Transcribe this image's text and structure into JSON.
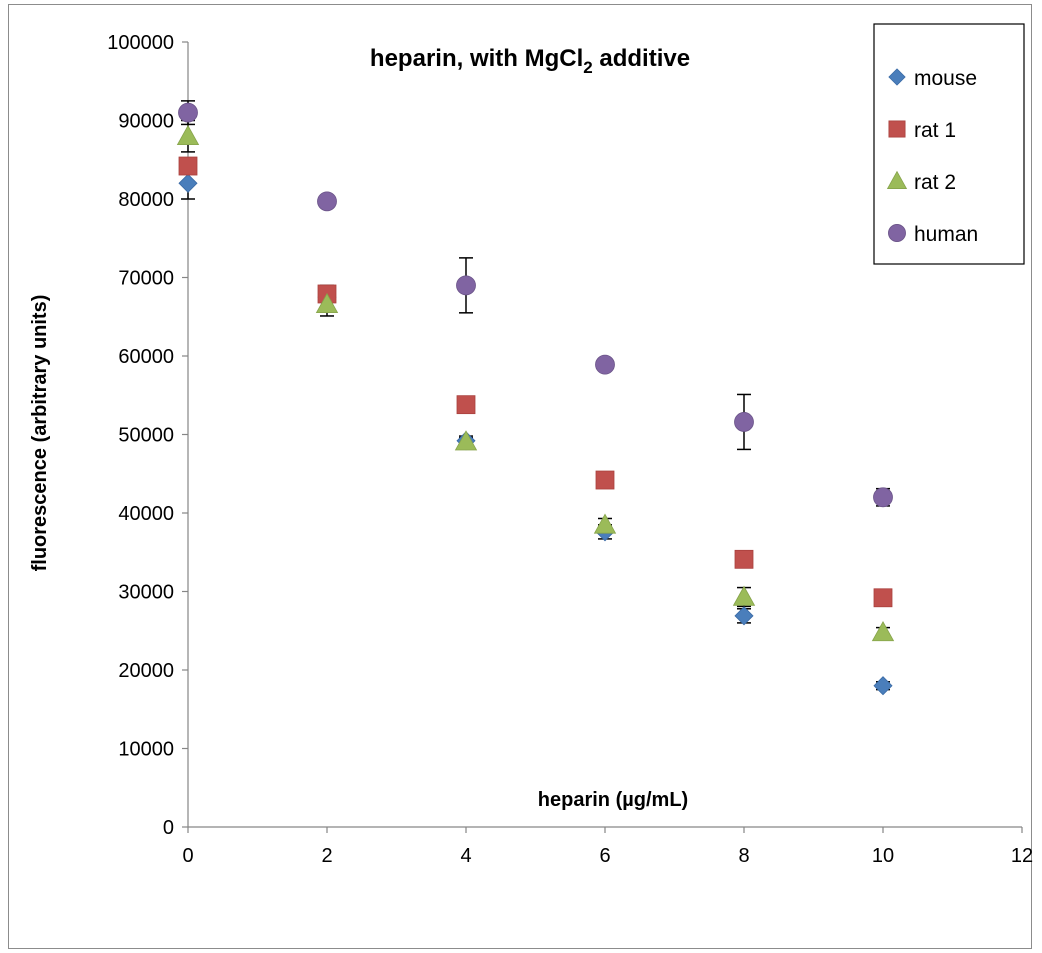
{
  "chart_data": {
    "type": "scatter",
    "title": "heparin, with MgCl",
    "title_subscript": "2",
    "title_suffix": " additive",
    "xlabel": "heparin (µg/mL)",
    "ylabel": "fluorescence (arbitrary units)",
    "xlim": [
      0,
      12
    ],
    "ylim": [
      0,
      100000
    ],
    "xticks": [
      "0",
      "2",
      "4",
      "6",
      "8",
      "10",
      "12"
    ],
    "yticks": [
      "0",
      "10000",
      "20000",
      "30000",
      "40000",
      "50000",
      "60000",
      "70000",
      "80000",
      "90000",
      "100000"
    ],
    "grid": false,
    "legend": "top-right",
    "series": [
      {
        "name": "mouse",
        "marker": "diamond",
        "color": "#4a7ebb",
        "x": [
          0,
          2,
          4,
          6,
          8,
          10
        ],
        "y": [
          82000,
          67500,
          49200,
          37600,
          26900,
          18000
        ],
        "err": [
          2000,
          1500,
          600,
          900,
          900,
          500
        ]
      },
      {
        "name": "rat 1",
        "marker": "square",
        "color": "#c0504d",
        "x": [
          0,
          2,
          4,
          6,
          8,
          10
        ],
        "y": [
          84200,
          67900,
          53800,
          44200,
          34100,
          29200
        ],
        "err": [
          0,
          0,
          0,
          0,
          0,
          0
        ]
      },
      {
        "name": "rat 2",
        "marker": "triangle",
        "color": "#9bbb59",
        "x": [
          0,
          2,
          4,
          6,
          8,
          10
        ],
        "y": [
          88000,
          66600,
          49100,
          38500,
          29300,
          24800
        ],
        "err": [
          2000,
          1500,
          500,
          800,
          1200,
          600
        ]
      },
      {
        "name": "human",
        "marker": "circle",
        "color": "#8064a2",
        "x": [
          0,
          2,
          4,
          6,
          8,
          10
        ],
        "y": [
          91000,
          79700,
          69000,
          58900,
          51600,
          42000
        ],
        "err": [
          1500,
          500,
          3500,
          400,
          3500,
          1100
        ]
      }
    ]
  }
}
